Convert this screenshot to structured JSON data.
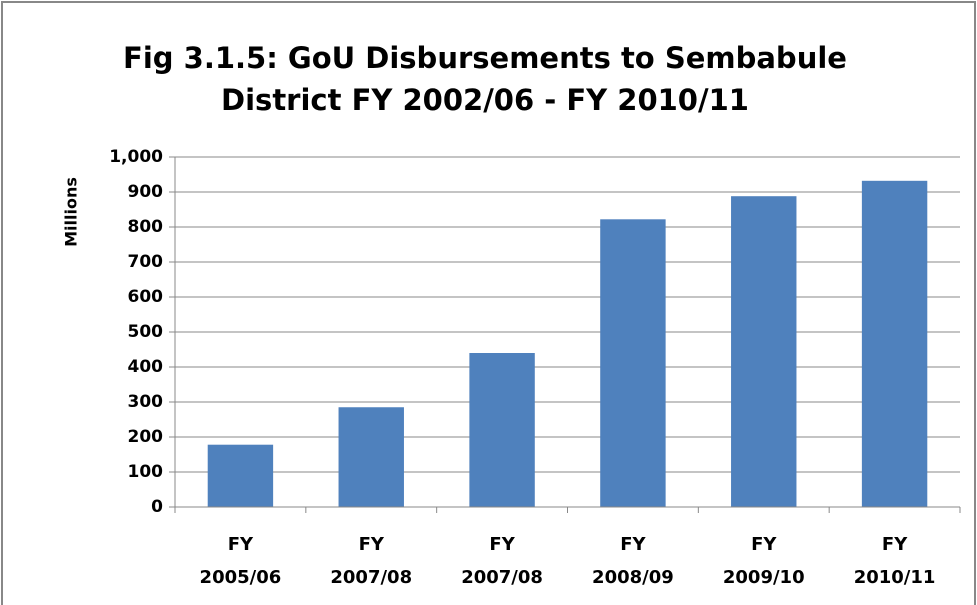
{
  "chart_data": {
    "type": "bar",
    "title": [
      "Fig 3.1.5: GoU Disbursements to Sembabule",
      "District FY 2002/06 - FY 2010/11"
    ],
    "ylabel": "Millions",
    "categories": [
      [
        "FY",
        "2005/06"
      ],
      [
        "FY",
        "2007/08"
      ],
      [
        "FY",
        "2007/08"
      ],
      [
        "FY",
        "2008/09"
      ],
      [
        "FY",
        "2009/10"
      ],
      [
        "FY",
        "2010/11"
      ]
    ],
    "values": [
      178,
      285,
      440,
      822,
      888,
      932
    ],
    "color": "#4f81bd",
    "ylim": [
      0,
      1000
    ],
    "yticks": [
      0,
      100,
      200,
      300,
      400,
      500,
      600,
      700,
      800,
      900,
      {
        "value": 1000,
        "label": "1,000"
      }
    ],
    "grid": true
  }
}
